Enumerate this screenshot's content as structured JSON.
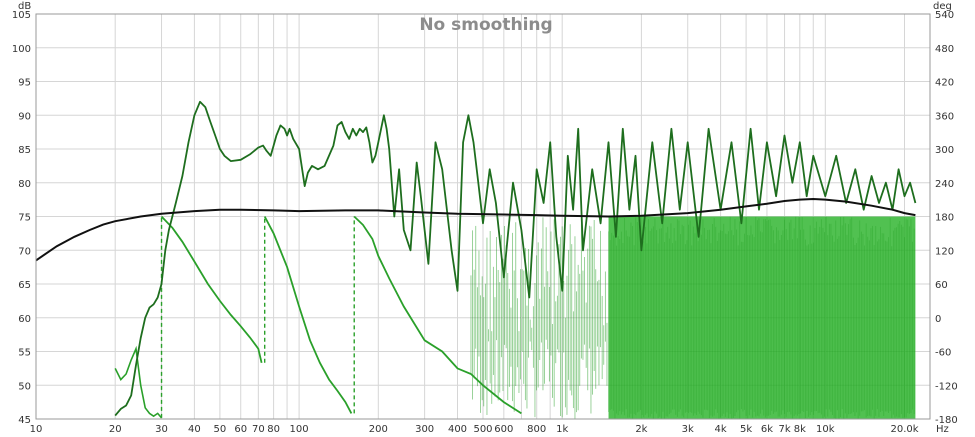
{
  "chart_data": {
    "type": "line",
    "title": "No smoothing",
    "x_scale": "log",
    "xlim": [
      10,
      25000
    ],
    "x_unit": "Hz",
    "y_unit": "dB",
    "y2_unit": "deg",
    "ylim": [
      45,
      105
    ],
    "y2lim": [
      -180,
      540
    ],
    "grid": true,
    "legend": "none",
    "x_ticks": [
      {
        "value": 10,
        "label": "10"
      },
      {
        "value": 20,
        "label": "20"
      },
      {
        "value": 30,
        "label": "30"
      },
      {
        "value": 40,
        "label": "40"
      },
      {
        "value": 50,
        "label": "50"
      },
      {
        "value": 60,
        "label": "60"
      },
      {
        "value": 70,
        "label": "70"
      },
      {
        "value": 80,
        "label": "80"
      },
      {
        "value": 100,
        "label": "100"
      },
      {
        "value": 200,
        "label": "200"
      },
      {
        "value": 300,
        "label": "300"
      },
      {
        "value": 400,
        "label": "400"
      },
      {
        "value": 500,
        "label": "500"
      },
      {
        "value": 600,
        "label": "600"
      },
      {
        "value": 800,
        "label": "800"
      },
      {
        "value": 1000,
        "label": "1k"
      },
      {
        "value": 2000,
        "label": "2k"
      },
      {
        "value": 3000,
        "label": "3k"
      },
      {
        "value": 4000,
        "label": "4k"
      },
      {
        "value": 5000,
        "label": "5k"
      },
      {
        "value": 6000,
        "label": "6k"
      },
      {
        "value": 7000,
        "label": "7k"
      },
      {
        "value": 8000,
        "label": "8k"
      },
      {
        "value": 10000,
        "label": "10k"
      },
      {
        "value": 20000,
        "label": "20.0k"
      }
    ],
    "x_minor": [
      90,
      700,
      900,
      9000
    ],
    "y_ticks": [
      "105",
      "100",
      "95",
      "90",
      "85",
      "80",
      "75",
      "70",
      "65",
      "60",
      "55",
      "50",
      "45"
    ],
    "y2_ticks": [
      "540",
      "480",
      "420",
      "360",
      "300",
      "240",
      "180",
      "120",
      "60",
      "0",
      "-60",
      "-120",
      "-180"
    ],
    "colors": {
      "magnitude": "#1e6e1e",
      "phase": "#2aa02a",
      "phase_fill": "#20b020",
      "black_trace": "#111111",
      "grid": "#d6d6d6"
    },
    "series": [
      {
        "key": "black",
        "axis": "dB",
        "points": [
          [
            10,
            68.5
          ],
          [
            12,
            70.6
          ],
          [
            14,
            72.0
          ],
          [
            16,
            73.0
          ],
          [
            18,
            73.8
          ],
          [
            20,
            74.3
          ],
          [
            25,
            75.0
          ],
          [
            30,
            75.4
          ],
          [
            40,
            75.8
          ],
          [
            50,
            76.0
          ],
          [
            60,
            76.0
          ],
          [
            80,
            75.9
          ],
          [
            100,
            75.8
          ],
          [
            150,
            75.9
          ],
          [
            200,
            75.9
          ],
          [
            300,
            75.6
          ],
          [
            400,
            75.4
          ],
          [
            600,
            75.3
          ],
          [
            800,
            75.2
          ],
          [
            1000,
            75.1
          ],
          [
            1500,
            75.0
          ],
          [
            2000,
            75.1
          ],
          [
            3000,
            75.5
          ],
          [
            4000,
            76.0
          ],
          [
            5000,
            76.5
          ],
          [
            6000,
            76.9
          ],
          [
            7000,
            77.3
          ],
          [
            8000,
            77.5
          ],
          [
            9000,
            77.6
          ],
          [
            10000,
            77.5
          ],
          [
            12000,
            77.2
          ],
          [
            15000,
            76.6
          ],
          [
            18000,
            76.0
          ],
          [
            20000,
            75.5
          ],
          [
            22000,
            75.2
          ]
        ]
      },
      {
        "key": "magnitude",
        "axis": "dB",
        "points": [
          [
            20,
            45.5
          ],
          [
            21,
            46.5
          ],
          [
            22,
            47.0
          ],
          [
            23,
            48.5
          ],
          [
            24,
            53.0
          ],
          [
            25,
            57.0
          ],
          [
            26,
            60.0
          ],
          [
            27,
            61.5
          ],
          [
            28,
            62.0
          ],
          [
            29,
            63.0
          ],
          [
            30,
            65.0
          ],
          [
            31,
            70.0
          ],
          [
            32,
            73.0
          ],
          [
            34,
            77.0
          ],
          [
            36,
            81.0
          ],
          [
            38,
            86.0
          ],
          [
            40,
            90.0
          ],
          [
            42,
            92.0
          ],
          [
            44,
            91.2
          ],
          [
            46,
            89.0
          ],
          [
            48,
            87.0
          ],
          [
            50,
            85.0
          ],
          [
            52,
            84.0
          ],
          [
            55,
            83.2
          ],
          [
            60,
            83.4
          ],
          [
            65,
            84.2
          ],
          [
            70,
            85.2
          ],
          [
            73,
            85.5
          ],
          [
            75,
            84.8
          ],
          [
            78,
            84.0
          ],
          [
            80,
            85.5
          ],
          [
            82,
            87.0
          ],
          [
            85,
            88.5
          ],
          [
            88,
            88.0
          ],
          [
            90,
            87.0
          ],
          [
            92,
            88.0
          ],
          [
            95,
            86.5
          ],
          [
            100,
            85.0
          ],
          [
            105,
            79.5
          ],
          [
            108,
            81.5
          ],
          [
            112,
            82.5
          ],
          [
            118,
            82.0
          ],
          [
            125,
            82.5
          ],
          [
            135,
            85.5
          ],
          [
            140,
            88.5
          ],
          [
            145,
            89.0
          ],
          [
            150,
            87.5
          ],
          [
            155,
            86.5
          ],
          [
            160,
            88.0
          ],
          [
            165,
            87.0
          ],
          [
            170,
            88.0
          ],
          [
            175,
            87.5
          ],
          [
            180,
            88.2
          ],
          [
            185,
            86.0
          ],
          [
            190,
            83.0
          ],
          [
            195,
            84.0
          ],
          [
            200,
            86.0
          ],
          [
            205,
            88.0
          ],
          [
            210,
            90.0
          ],
          [
            215,
            88.0
          ],
          [
            220,
            85.0
          ],
          [
            230,
            75.0
          ],
          [
            240,
            82.0
          ],
          [
            250,
            73.0
          ],
          [
            265,
            70.0
          ],
          [
            280,
            83.0
          ],
          [
            290,
            78.0
          ],
          [
            310,
            68.0
          ],
          [
            330,
            86.0
          ],
          [
            350,
            82.0
          ],
          [
            380,
            70.0
          ],
          [
            400,
            64.0
          ],
          [
            420,
            86.0
          ],
          [
            440,
            90.0
          ],
          [
            460,
            86.0
          ],
          [
            480,
            80.0
          ],
          [
            500,
            74.0
          ],
          [
            530,
            82.0
          ],
          [
            560,
            77.0
          ],
          [
            600,
            66.0
          ],
          [
            650,
            80.0
          ],
          [
            700,
            73.0
          ],
          [
            750,
            63.0
          ],
          [
            800,
            82.0
          ],
          [
            850,
            77.0
          ],
          [
            900,
            86.0
          ],
          [
            950,
            72.0
          ],
          [
            1000,
            64.0
          ],
          [
            1050,
            84.0
          ],
          [
            1100,
            76.0
          ],
          [
            1150,
            88.0
          ],
          [
            1200,
            70.0
          ],
          [
            1300,
            82.0
          ],
          [
            1400,
            74.0
          ],
          [
            1500,
            86.0
          ],
          [
            1600,
            72.0
          ],
          [
            1700,
            88.0
          ],
          [
            1800,
            76.0
          ],
          [
            1900,
            84.0
          ],
          [
            2000,
            70.0
          ],
          [
            2200,
            86.0
          ],
          [
            2400,
            74.0
          ],
          [
            2600,
            88.0
          ],
          [
            2800,
            76.0
          ],
          [
            3000,
            86.0
          ],
          [
            3300,
            72.0
          ],
          [
            3600,
            88.0
          ],
          [
            4000,
            76.0
          ],
          [
            4400,
            86.0
          ],
          [
            4800,
            74.0
          ],
          [
            5200,
            88.0
          ],
          [
            5600,
            76.0
          ],
          [
            6000,
            86.0
          ],
          [
            6500,
            78.0
          ],
          [
            7000,
            87.0
          ],
          [
            7500,
            80.0
          ],
          [
            8000,
            86.0
          ],
          [
            8500,
            78.0
          ],
          [
            9000,
            84.0
          ],
          [
            10000,
            78.0
          ],
          [
            11000,
            84.0
          ],
          [
            12000,
            77.0
          ],
          [
            13000,
            82.0
          ],
          [
            14000,
            76.0
          ],
          [
            15000,
            81.0
          ],
          [
            16000,
            77.0
          ],
          [
            17000,
            80.0
          ],
          [
            18000,
            76.0
          ],
          [
            19000,
            82.0
          ],
          [
            20000,
            78.0
          ],
          [
            21000,
            80.0
          ],
          [
            22000,
            77.0
          ]
        ]
      },
      {
        "key": "phase",
        "axis": "deg",
        "points": [
          [
            20,
            -90
          ],
          [
            21,
            -110
          ],
          [
            22,
            -100
          ],
          [
            23,
            -75
          ],
          [
            24,
            -55
          ],
          [
            25,
            -120
          ],
          [
            26,
            -160
          ],
          [
            27,
            -170
          ],
          [
            28,
            -175
          ],
          [
            29,
            -170
          ],
          [
            30,
            -178
          ]
        ],
        "note_segments": [
          [
            [
              30,
              180
            ],
            [
              33,
              160
            ],
            [
              36,
              135
            ],
            [
              40,
              100
            ],
            [
              45,
              60
            ],
            [
              50,
              30
            ],
            [
              55,
              5
            ],
            [
              60,
              -15
            ],
            [
              65,
              -35
            ],
            [
              70,
              -55
            ],
            [
              72,
              -80
            ]
          ],
          [
            [
              74,
              180
            ],
            [
              80,
              150
            ],
            [
              90,
              90
            ],
            [
              100,
              20
            ],
            [
              110,
              -40
            ],
            [
              120,
              -80
            ],
            [
              130,
              -110
            ],
            [
              140,
              -130
            ],
            [
              150,
              -150
            ],
            [
              158,
              -170
            ]
          ],
          [
            [
              162,
              180
            ],
            [
              175,
              165
            ],
            [
              190,
              140
            ],
            [
              200,
              110
            ],
            [
              220,
              70
            ],
            [
              250,
              20
            ],
            [
              300,
              -40
            ],
            [
              350,
              -60
            ],
            [
              400,
              -90
            ],
            [
              450,
              -100
            ],
            [
              500,
              -120
            ],
            [
              600,
              -150
            ],
            [
              700,
              -170
            ]
          ]
        ]
      }
    ]
  }
}
